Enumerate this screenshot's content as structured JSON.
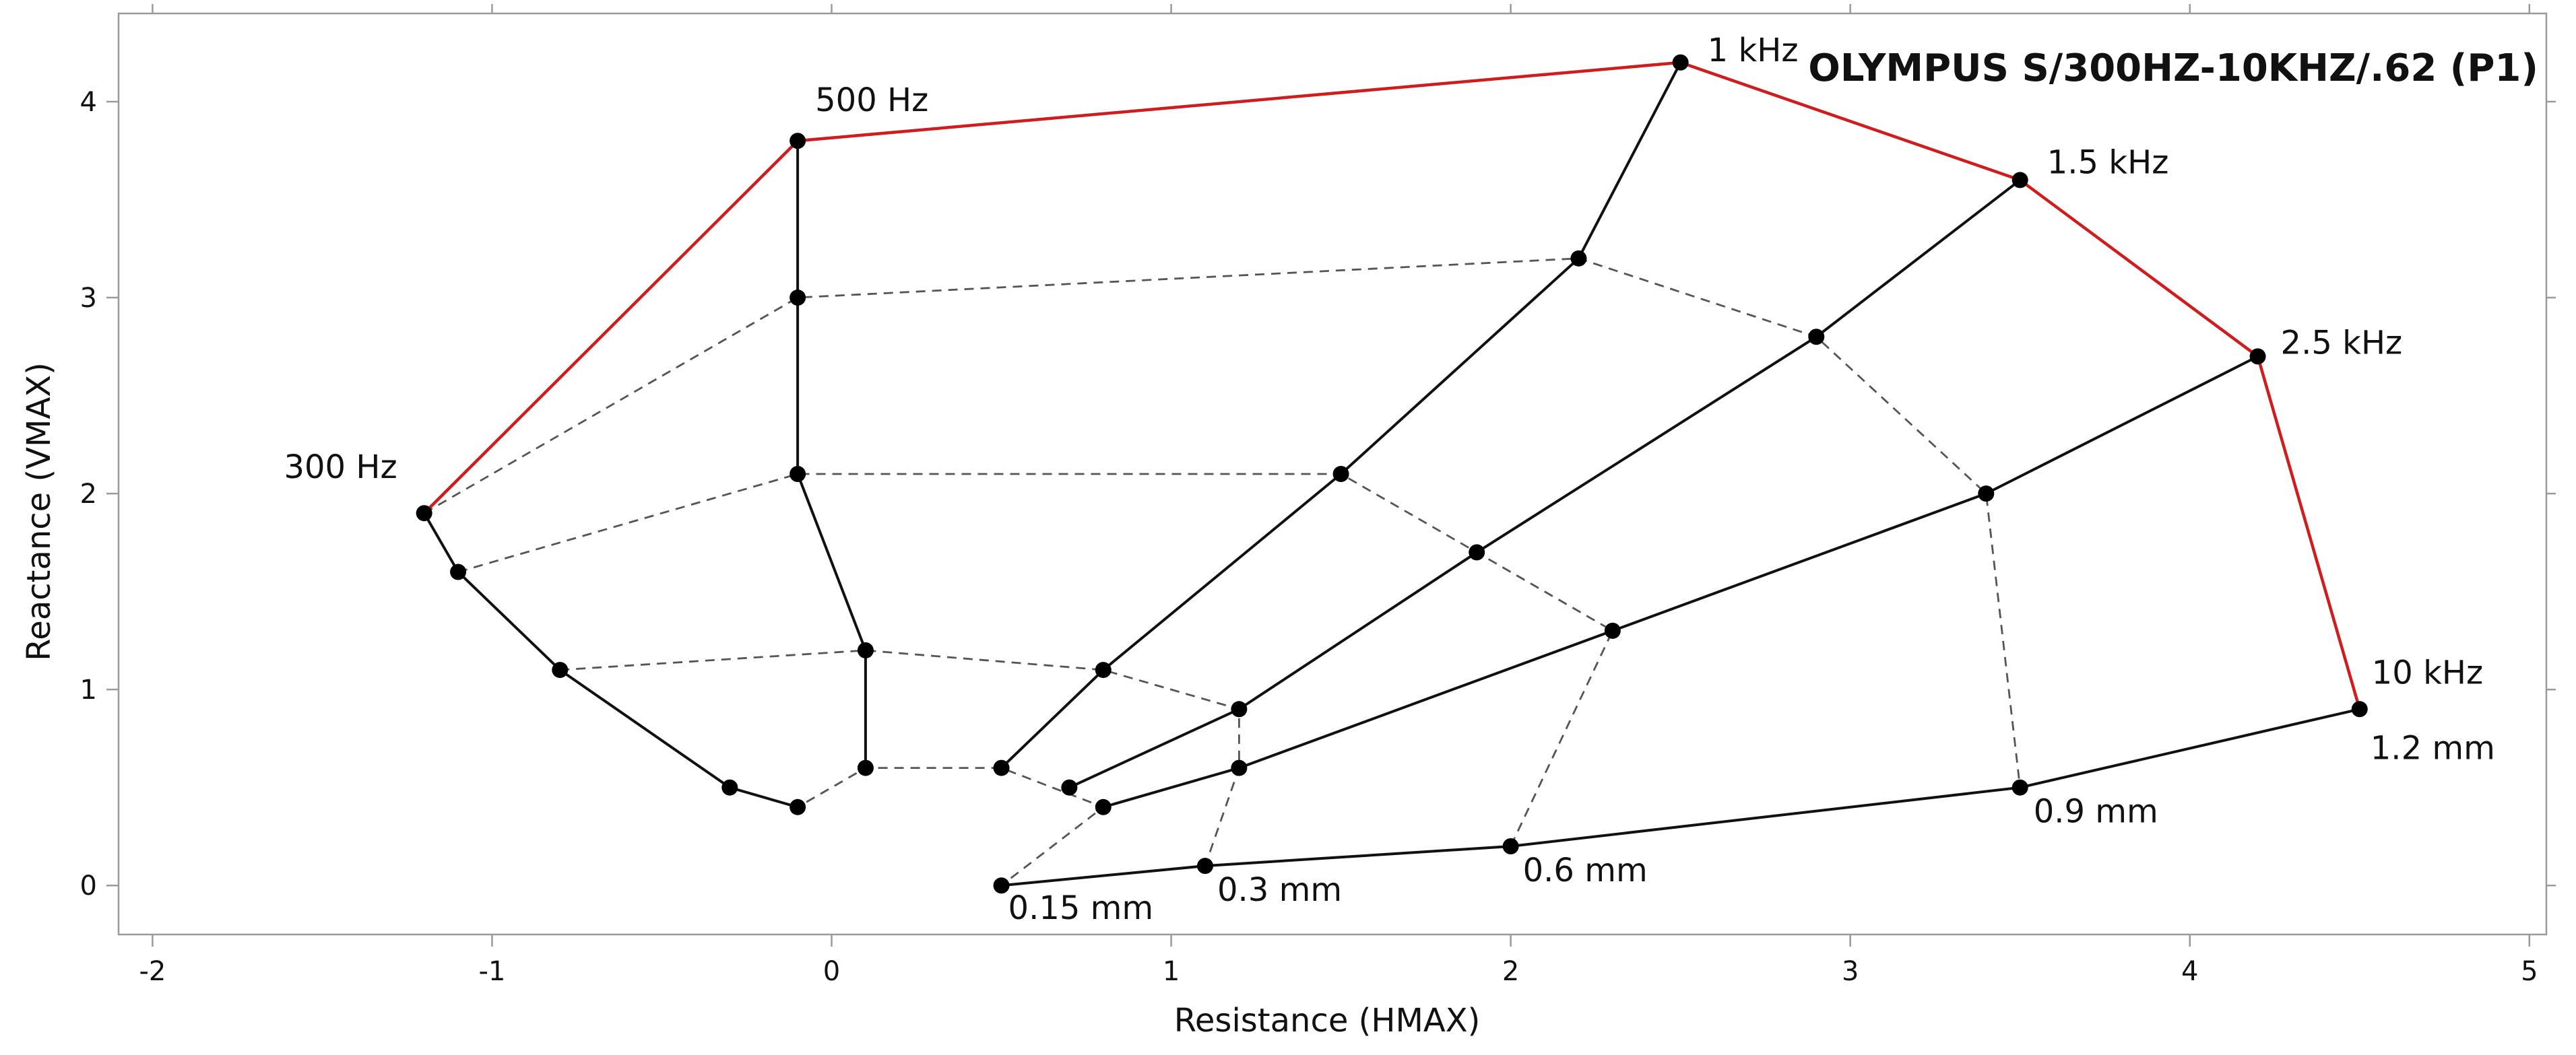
{
  "chart_data": {
    "type": "line",
    "title": "OLYMPUS S/300HZ-10KHZ/.62 (P1)",
    "xlabel": "Resistance (HMAX)",
    "ylabel": "Reactance (VMAX)",
    "xlim": [
      -2.1,
      5.05
    ],
    "ylim": [
      -0.25,
      4.45
    ],
    "xticks": [
      -2,
      -1,
      0,
      1,
      2,
      3,
      4,
      5
    ],
    "yticks": [
      0,
      1,
      2,
      3,
      4
    ],
    "series": [
      {
        "name": "300 Hz",
        "style": "solid",
        "x": [
          -1.2,
          -1.1,
          -0.8,
          -0.3,
          -0.1
        ],
        "y": [
          1.9,
          1.6,
          1.1,
          0.5,
          0.4
        ]
      },
      {
        "name": "500 Hz",
        "style": "solid",
        "x": [
          -0.1,
          -0.1,
          -0.1,
          0.1,
          0.1
        ],
        "y": [
          3.8,
          3.0,
          2.1,
          1.2,
          0.6
        ]
      },
      {
        "name": "1 kHz",
        "style": "solid",
        "x": [
          2.5,
          2.2,
          1.5,
          0.8,
          0.5
        ],
        "y": [
          4.2,
          3.2,
          2.1,
          1.1,
          0.6
        ]
      },
      {
        "name": "1.5 kHz",
        "style": "solid",
        "x": [
          3.5,
          2.9,
          1.9,
          1.2,
          0.7
        ],
        "y": [
          3.6,
          2.8,
          1.7,
          0.9,
          0.5
        ]
      },
      {
        "name": "2.5 kHz",
        "style": "solid",
        "x": [
          4.2,
          3.4,
          2.3,
          1.2,
          0.8
        ],
        "y": [
          2.7,
          2.0,
          1.3,
          0.6,
          0.4
        ]
      },
      {
        "name": "10 kHz",
        "style": "solid",
        "x": [
          4.5,
          3.5,
          2.0,
          1.1,
          0.5
        ],
        "y": [
          0.9,
          0.5,
          0.2,
          0.1,
          0.0
        ]
      },
      {
        "name": "0.15 mm",
        "style": "dashed",
        "x": [
          -0.3,
          -0.1,
          0.1,
          0.5,
          0.8,
          0.5
        ],
        "y": [
          0.5,
          0.4,
          0.6,
          0.6,
          0.4,
          0.0
        ]
      },
      {
        "name": "0.3 mm",
        "style": "dashed",
        "x": [
          -0.8,
          0.1,
          0.8,
          1.2,
          1.2,
          1.1
        ],
        "y": [
          1.1,
          1.2,
          1.1,
          0.9,
          0.6,
          0.1
        ]
      },
      {
        "name": "0.6 mm",
        "style": "dashed",
        "x": [
          -1.1,
          -0.1,
          1.5,
          1.9,
          2.3,
          2.0
        ],
        "y": [
          1.6,
          2.1,
          2.1,
          1.7,
          1.3,
          0.2
        ]
      },
      {
        "name": "0.9 mm",
        "style": "dashed",
        "x": [
          -1.2,
          -0.1,
          2.2,
          2.9,
          3.4,
          3.5
        ],
        "y": [
          1.9,
          3.0,
          3.2,
          2.8,
          2.0,
          0.5
        ]
      },
      {
        "name": "1.2 mm",
        "style": "red",
        "x": [
          -1.2,
          -0.1,
          2.5,
          3.5,
          4.2,
          4.5
        ],
        "y": [
          1.9,
          3.8,
          4.2,
          3.6,
          2.7,
          0.9
        ]
      }
    ],
    "annotations": [
      {
        "text": "300 Hz",
        "x": -1.2,
        "y": 1.9
      },
      {
        "text": "500 Hz",
        "x": -0.1,
        "y": 3.8
      },
      {
        "text": "1 kHz",
        "x": 2.5,
        "y": 4.2
      },
      {
        "text": "1.5 kHz",
        "x": 3.5,
        "y": 3.6
      },
      {
        "text": "2.5 kHz",
        "x": 4.2,
        "y": 2.7
      },
      {
        "text": "10 kHz",
        "x": 4.5,
        "y": 0.9
      },
      {
        "text": "0.15 mm",
        "x": 0.5,
        "y": 0.0
      },
      {
        "text": "0.3 mm",
        "x": 1.1,
        "y": 0.1
      },
      {
        "text": "0.6 mm",
        "x": 2.0,
        "y": 0.2
      },
      {
        "text": "0.9 mm",
        "x": 3.5,
        "y": 0.5
      },
      {
        "text": "1.2 mm",
        "x": 4.5,
        "y": 0.9
      }
    ],
    "grid": false,
    "colors": {
      "primary": "#111111",
      "dashed": "#555555",
      "highlight": "#d01c1c",
      "axis": "#9a9a9a"
    }
  }
}
